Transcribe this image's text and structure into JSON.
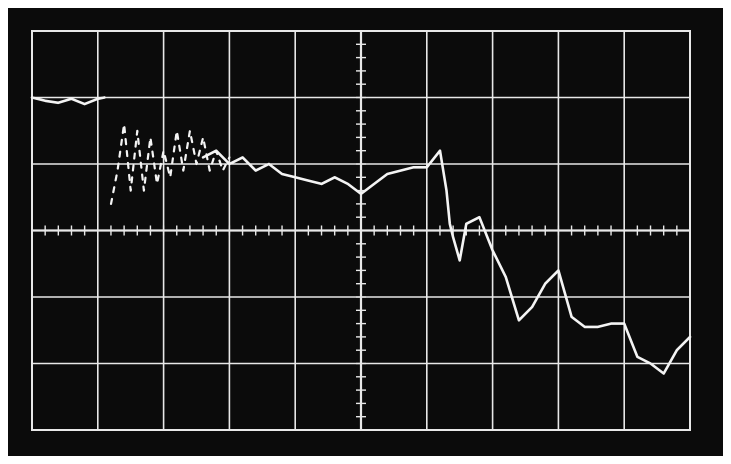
{
  "screen": {
    "background_color": "#0b0b0b",
    "trace_color": "#f4f4f4",
    "graticule_color": "#e8e8e8",
    "border_color": "#ffffff"
  },
  "chart_data": {
    "type": "line",
    "title": "",
    "xlabel": "",
    "ylabel": "",
    "grid": true,
    "graticule": {
      "x_divisions": 10,
      "y_divisions": 6,
      "minor_ticks_per_division": 5
    },
    "xlim": [
      0,
      10
    ],
    "ylim": [
      -3,
      3
    ],
    "series": [
      {
        "style": "solid",
        "x": [
          0.0,
          0.2,
          0.4,
          0.6,
          0.8,
          1.0,
          1.1
        ],
        "y": [
          2.0,
          1.95,
          1.92,
          1.98,
          1.9,
          1.98,
          2.0
        ]
      },
      {
        "style": "dashed",
        "x": [
          1.2,
          1.3,
          1.4,
          1.5,
          1.6,
          1.7,
          1.8,
          1.9,
          2.0,
          2.1,
          2.2,
          2.3,
          2.4,
          2.5,
          2.6,
          2.7,
          2.8,
          2.9,
          3.0
        ],
        "y": [
          0.4,
          0.9,
          1.6,
          0.6,
          1.5,
          0.6,
          1.4,
          0.7,
          1.2,
          0.8,
          1.5,
          0.9,
          1.5,
          1.0,
          1.4,
          0.9,
          1.2,
          0.9,
          1.1
        ]
      },
      {
        "style": "solid",
        "x": [
          2.6,
          2.8,
          3.0,
          3.2,
          3.4,
          3.6,
          3.8,
          4.0,
          4.2,
          4.4,
          4.6,
          4.8,
          5.0,
          5.2,
          5.4,
          5.6,
          5.8,
          6.0,
          6.2,
          6.3,
          6.35,
          6.4,
          6.5,
          6.6,
          6.8,
          7.0,
          7.2,
          7.4,
          7.6,
          7.8,
          8.0,
          8.2,
          8.4,
          8.6,
          8.8,
          9.0,
          9.2,
          9.4,
          9.6,
          9.8,
          10.0
        ],
        "y": [
          1.1,
          1.2,
          1.0,
          1.1,
          0.9,
          1.0,
          0.85,
          0.8,
          0.75,
          0.7,
          0.8,
          0.7,
          0.55,
          0.7,
          0.85,
          0.9,
          0.95,
          0.95,
          1.2,
          0.6,
          0.1,
          -0.1,
          -0.45,
          0.1,
          0.2,
          -0.3,
          -0.7,
          -1.35,
          -1.15,
          -0.8,
          -0.6,
          -1.3,
          -1.45,
          -1.45,
          -1.4,
          -1.4,
          -1.9,
          -2.0,
          -2.15,
          -1.8,
          -1.6
        ]
      }
    ]
  }
}
